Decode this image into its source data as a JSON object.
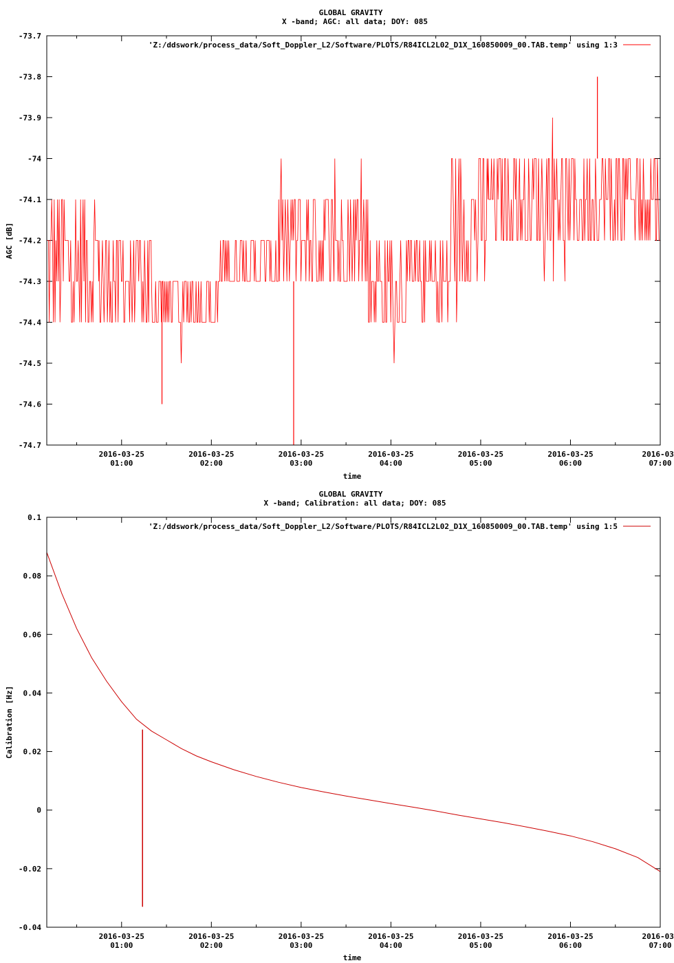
{
  "chart_data": [
    {
      "type": "line",
      "title": "GLOBAL GRAVITY",
      "subtitle": "X -band; AGC: all data; DOY: 085",
      "xlabel": "time",
      "ylabel": "AGC [dB]",
      "ylim": [
        -74.7,
        -73.7
      ],
      "xlim": [
        "2016-03-25 00:10",
        "2016-03-25 07:00"
      ],
      "yticks": [
        "-73.7",
        "-73.8",
        "-73.9",
        "-74",
        "-74.1",
        "-74.2",
        "-74.3",
        "-74.4",
        "-74.5",
        "-74.6",
        "-74.7"
      ],
      "xticks": [
        {
          "date": "2016-03-25",
          "time": "01:00"
        },
        {
          "date": "2016-03-25",
          "time": "02:00"
        },
        {
          "date": "2016-03-25",
          "time": "03:00"
        },
        {
          "date": "2016-03-25",
          "time": "04:00"
        },
        {
          "date": "2016-03-25",
          "time": "05:00"
        },
        {
          "date": "2016-03-25",
          "time": "06:00"
        },
        {
          "date": "2016-03-",
          "time": "07:00"
        }
      ],
      "legend_position": "top-right",
      "series": [
        {
          "name": "'Z:/ddswork/process_data/Soft_Doppler_L2/Software/PLOTS/R84ICL2L02_D1X_160850009_00.TAB.temp' using 1:3",
          "color": "#ff0000",
          "description_bands": [
            {
              "from": "00:10",
              "to": "00:45",
              "low": -74.4,
              "high": -74.1
            },
            {
              "from": "00:45",
              "to": "01:20",
              "low": -74.4,
              "high": -74.2
            },
            {
              "from": "01:20",
              "to": "02:05",
              "low": -74.4,
              "high": -74.3
            },
            {
              "from": "02:05",
              "to": "02:45",
              "low": -74.3,
              "high": -74.2
            },
            {
              "from": "02:45",
              "to": "03:45",
              "low": -74.3,
              "high": -74.1
            },
            {
              "from": "03:45",
              "to": "04:40",
              "low": -74.4,
              "high": -74.2
            },
            {
              "from": "04:40",
              "to": "05:05",
              "low": -74.3,
              "high": -74.0
            },
            {
              "from": "05:05",
              "to": "07:00",
              "low": -74.2,
              "high": -74.0
            }
          ],
          "extremes": [
            {
              "time": "02:55",
              "value": -74.7
            },
            {
              "time": "01:27",
              "value": -74.6
            },
            {
              "time": "06:18",
              "value": -73.8
            }
          ]
        }
      ]
    },
    {
      "type": "line",
      "title": "GLOBAL GRAVITY",
      "subtitle": "X -band; Calibration: all data; DOY: 085",
      "xlabel": "time",
      "ylabel": "Calibration [Hz]",
      "ylim": [
        -0.04,
        0.1
      ],
      "xlim": [
        "2016-03-25 00:10",
        "2016-03-25 07:00"
      ],
      "yticks": [
        "0.1",
        "0.08",
        "0.06",
        "0.04",
        "0.02",
        "0",
        "-0.02",
        "-0.04"
      ],
      "xticks": [
        {
          "date": "2016-03-25",
          "time": "01:00"
        },
        {
          "date": "2016-03-25",
          "time": "02:00"
        },
        {
          "date": "2016-03-25",
          "time": "03:00"
        },
        {
          "date": "2016-03-25",
          "time": "04:00"
        },
        {
          "date": "2016-03-25",
          "time": "05:00"
        },
        {
          "date": "2016-03-25",
          "time": "06:00"
        },
        {
          "date": "2016-03-",
          "time": "07:00"
        }
      ],
      "legend_position": "top-right",
      "series": [
        {
          "name": "'Z:/ddswork/process_data/Soft_Doppler_L2/Software/PLOTS/R84ICL2L02_D1X_160850009_00.TAB.temp' using 1:5",
          "color": "#cc0000",
          "x": [
            "00:10",
            "00:20",
            "00:30",
            "00:40",
            "00:50",
            "01:00",
            "01:10",
            "01:20",
            "01:30",
            "01:40",
            "01:50",
            "02:00",
            "02:15",
            "02:30",
            "02:45",
            "03:00",
            "03:15",
            "03:30",
            "03:45",
            "04:00",
            "04:15",
            "04:30",
            "04:45",
            "05:00",
            "05:15",
            "05:30",
            "05:45",
            "06:00",
            "06:15",
            "06:30",
            "06:45",
            "07:00"
          ],
          "y": [
            0.088,
            0.074,
            0.062,
            0.052,
            0.044,
            0.037,
            0.031,
            0.027,
            0.024,
            0.021,
            0.0185,
            0.0165,
            0.0138,
            0.0115,
            0.0095,
            0.0077,
            0.0062,
            0.0048,
            0.0035,
            0.0022,
            0.001,
            -0.0003,
            -0.0017,
            -0.003,
            -0.0043,
            -0.0057,
            -0.0072,
            -0.0088,
            -0.0108,
            -0.0132,
            -0.0162,
            -0.021
          ],
          "spike": {
            "time": "01:14",
            "value": -0.033,
            "upper": 0.0275
          }
        }
      ]
    }
  ]
}
